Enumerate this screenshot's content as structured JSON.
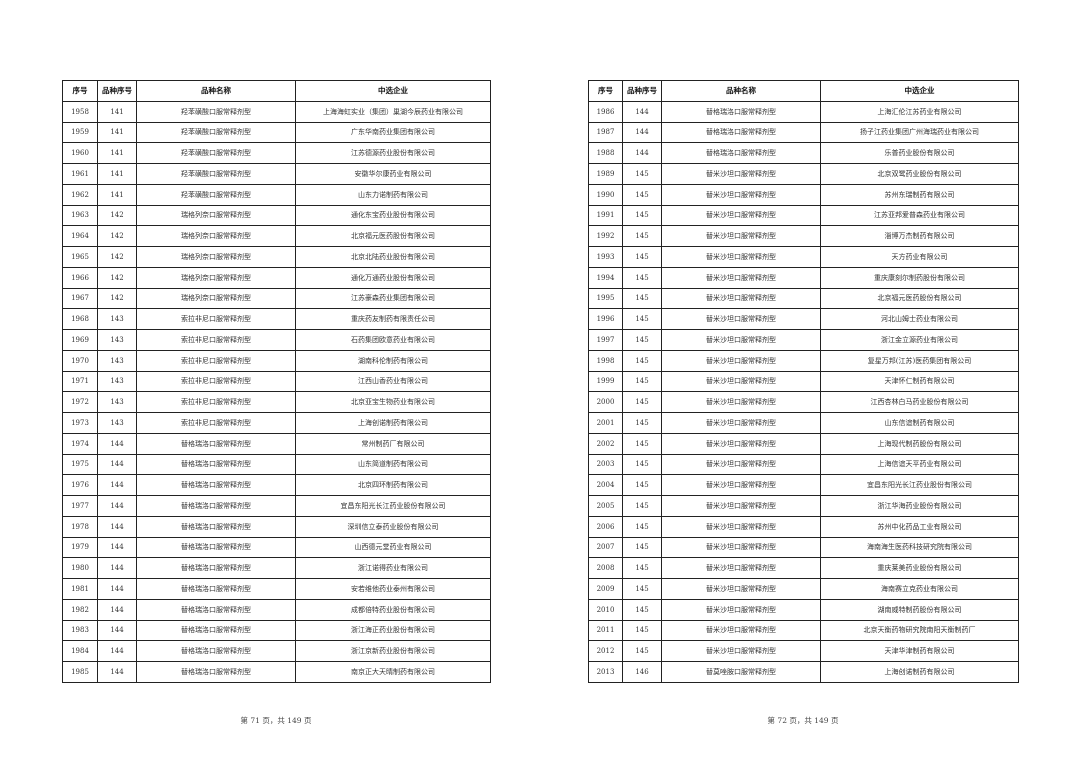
{
  "columns": [
    "序号",
    "品种序号",
    "品种名称",
    "中选企业"
  ],
  "pages": [
    {
      "footer": "第 71 页，共 149 页",
      "rows": [
        [
          "1958",
          "141",
          "羟苯磺酸口服常释剂型",
          "上海海虹实业（集团）巢湖今辰药业有限公司"
        ],
        [
          "1959",
          "141",
          "羟苯磺酸口服常释剂型",
          "广东华南药业集团有限公司"
        ],
        [
          "1960",
          "141",
          "羟苯磺酸口服常释剂型",
          "江苏德源药业股份有限公司"
        ],
        [
          "1961",
          "141",
          "羟苯磺酸口服常释剂型",
          "安徽华尔康药业有限公司"
        ],
        [
          "1962",
          "141",
          "羟苯磺酸口服常释剂型",
          "山东力诺制药有限公司"
        ],
        [
          "1963",
          "142",
          "瑞格列奈口服常释剂型",
          "通化东宝药业股份有限公司"
        ],
        [
          "1964",
          "142",
          "瑞格列奈口服常释剂型",
          "北京福元医药股份有限公司"
        ],
        [
          "1965",
          "142",
          "瑞格列奈口服常释剂型",
          "北京北陆药业股份有限公司"
        ],
        [
          "1966",
          "142",
          "瑞格列奈口服常释剂型",
          "通化万通药业股份有限公司"
        ],
        [
          "1967",
          "142",
          "瑞格列奈口服常释剂型",
          "江苏豪森药业集团有限公司"
        ],
        [
          "1968",
          "143",
          "索拉非尼口服常释剂型",
          "重庆药友制药有限责任公司"
        ],
        [
          "1969",
          "143",
          "索拉非尼口服常释剂型",
          "石药集团欧意药业有限公司"
        ],
        [
          "1970",
          "143",
          "索拉非尼口服常释剂型",
          "湖南科伦制药有限公司"
        ],
        [
          "1971",
          "143",
          "索拉非尼口服常释剂型",
          "江西山香药业有限公司"
        ],
        [
          "1972",
          "143",
          "索拉非尼口服常释剂型",
          "北京亚宝生物药业有限公司"
        ],
        [
          "1973",
          "143",
          "索拉非尼口服常释剂型",
          "上海创诺制药有限公司"
        ],
        [
          "1974",
          "144",
          "替格瑞洛口服常释剂型",
          "常州制药厂有限公司"
        ],
        [
          "1975",
          "144",
          "替格瑞洛口服常释剂型",
          "山东简道制药有限公司"
        ],
        [
          "1976",
          "144",
          "替格瑞洛口服常释剂型",
          "北京四环制药有限公司"
        ],
        [
          "1977",
          "144",
          "替格瑞洛口服常释剂型",
          "宜昌东阳光长江药业股份有限公司"
        ],
        [
          "1978",
          "144",
          "替格瑞洛口服常释剂型",
          "深圳信立泰药业股份有限公司"
        ],
        [
          "1979",
          "144",
          "替格瑞洛口服常释剂型",
          "山西德元堂药业有限公司"
        ],
        [
          "1980",
          "144",
          "替格瑞洛口服常释剂型",
          "浙江诺得药业有限公司"
        ],
        [
          "1981",
          "144",
          "替格瑞洛口服常释剂型",
          "安若维他药业泰州有限公司"
        ],
        [
          "1982",
          "144",
          "替格瑞洛口服常释剂型",
          "成都倍特药业股份有限公司"
        ],
        [
          "1983",
          "144",
          "替格瑞洛口服常释剂型",
          "浙江海正药业股份有限公司"
        ],
        [
          "1984",
          "144",
          "替格瑞洛口服常释剂型",
          "浙江京新药业股份有限公司"
        ],
        [
          "1985",
          "144",
          "替格瑞洛口服常释剂型",
          "南京正大天晴制药有限公司"
        ]
      ]
    },
    {
      "footer": "第 72 页，共 149 页",
      "rows": [
        [
          "1986",
          "144",
          "替格瑞洛口服常释剂型",
          "上海汇伦江苏药业有限公司"
        ],
        [
          "1987",
          "144",
          "替格瑞洛口服常释剂型",
          "扬子江药业集团广州海瑞药业有限公司"
        ],
        [
          "1988",
          "144",
          "替格瑞洛口服常释剂型",
          "乐普药业股份有限公司"
        ],
        [
          "1989",
          "145",
          "替米沙坦口服常释剂型",
          "北京双鹭药业股份有限公司"
        ],
        [
          "1990",
          "145",
          "替米沙坦口服常释剂型",
          "苏州东瑞制药有限公司"
        ],
        [
          "1991",
          "145",
          "替米沙坦口服常释剂型",
          "江苏亚邦爱普森药业有限公司"
        ],
        [
          "1992",
          "145",
          "替米沙坦口服常释剂型",
          "淄博万杰制药有限公司"
        ],
        [
          "1993",
          "145",
          "替米沙坦口服常释剂型",
          "天方药业有限公司"
        ],
        [
          "1994",
          "145",
          "替米沙坦口服常释剂型",
          "重庆康刻尔制药股份有限公司"
        ],
        [
          "1995",
          "145",
          "替米沙坦口服常释剂型",
          "北京福元医药股份有限公司"
        ],
        [
          "1996",
          "145",
          "替米沙坦口服常释剂型",
          "河北山姆士药业有限公司"
        ],
        [
          "1997",
          "145",
          "替米沙坦口服常释剂型",
          "浙江金立源药业有限公司"
        ],
        [
          "1998",
          "145",
          "替米沙坦口服常释剂型",
          "复星万邦(江苏)医药集团有限公司"
        ],
        [
          "1999",
          "145",
          "替米沙坦口服常释剂型",
          "天津怀仁制药有限公司"
        ],
        [
          "2000",
          "145",
          "替米沙坦口服常释剂型",
          "江西杏林白马药业股份有限公司"
        ],
        [
          "2001",
          "145",
          "替米沙坦口服常释剂型",
          "山东信谊制药有限公司"
        ],
        [
          "2002",
          "145",
          "替米沙坦口服常释剂型",
          "上海现代制药股份有限公司"
        ],
        [
          "2003",
          "145",
          "替米沙坦口服常释剂型",
          "上海信谊天平药业有限公司"
        ],
        [
          "2004",
          "145",
          "替米沙坦口服常释剂型",
          "宜昌东阳光长江药业股份有限公司"
        ],
        [
          "2005",
          "145",
          "替米沙坦口服常释剂型",
          "浙江华海药业股份有限公司"
        ],
        [
          "2006",
          "145",
          "替米沙坦口服常释剂型",
          "苏州中化药品工业有限公司"
        ],
        [
          "2007",
          "145",
          "替米沙坦口服常释剂型",
          "海南海生医药科技研究院有限公司"
        ],
        [
          "2008",
          "145",
          "替米沙坦口服常释剂型",
          "重庆莱美药业股份有限公司"
        ],
        [
          "2009",
          "145",
          "替米沙坦口服常释剂型",
          "海南赛立克药业有限公司"
        ],
        [
          "2010",
          "145",
          "替米沙坦口服常释剂型",
          "湖南威特制药股份有限公司"
        ],
        [
          "2011",
          "145",
          "替米沙坦口服常释剂型",
          "北京天衡药物研究院南阳天衡制药厂"
        ],
        [
          "2012",
          "145",
          "替米沙坦口服常释剂型",
          "天津华津制药有限公司"
        ],
        [
          "2013",
          "146",
          "替莫唑胺口服常释剂型",
          "上海创诺制药有限公司"
        ]
      ]
    }
  ]
}
